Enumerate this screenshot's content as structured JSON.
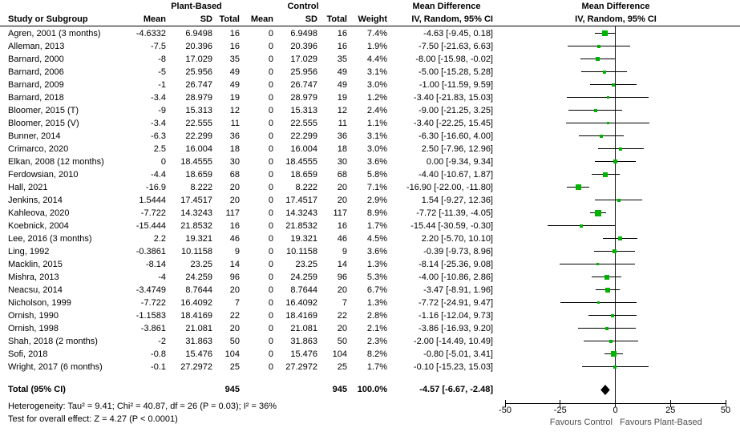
{
  "header": {
    "group_plant_based": "Plant-Based",
    "group_control": "Control",
    "study_col": "Study or Subgroup",
    "mean": "Mean",
    "sd": "SD",
    "total": "Total",
    "weight": "Weight",
    "md_title": "Mean Difference",
    "md_subtitle": "IV, Random, 95% CI"
  },
  "studies": [
    {
      "name": "Agren, 2001 (3 months)",
      "pb_mean": "-4.6332",
      "pb_sd": "6.9498",
      "pb_total": "16",
      "c_mean": "0",
      "c_sd": "6.9498",
      "c_total": "16",
      "weight": "7.4%",
      "ci_text": "-4.63 [-9.45, 0.18]"
    },
    {
      "name": "Alleman, 2013",
      "pb_mean": "-7.5",
      "pb_sd": "20.396",
      "pb_total": "16",
      "c_mean": "0",
      "c_sd": "20.396",
      "c_total": "16",
      "weight": "1.9%",
      "ci_text": "-7.50 [-21.63, 6.63]"
    },
    {
      "name": "Barnard, 2000",
      "pb_mean": "-8",
      "pb_sd": "17.029",
      "pb_total": "35",
      "c_mean": "0",
      "c_sd": "17.029",
      "c_total": "35",
      "weight": "4.4%",
      "ci_text": "-8.00 [-15.98, -0.02]"
    },
    {
      "name": "Barnard, 2006",
      "pb_mean": "-5",
      "pb_sd": "25.956",
      "pb_total": "49",
      "c_mean": "0",
      "c_sd": "25.956",
      "c_total": "49",
      "weight": "3.1%",
      "ci_text": "-5.00 [-15.28, 5.28]"
    },
    {
      "name": "Barnard, 2009",
      "pb_mean": "-1",
      "pb_sd": "26.747",
      "pb_total": "49",
      "c_mean": "0",
      "c_sd": "26.747",
      "c_total": "49",
      "weight": "3.0%",
      "ci_text": "-1.00 [-11.59, 9.59]"
    },
    {
      "name": "Barnard, 2018",
      "pb_mean": "-3.4",
      "pb_sd": "28.979",
      "pb_total": "19",
      "c_mean": "0",
      "c_sd": "28.979",
      "c_total": "19",
      "weight": "1.2%",
      "ci_text": "-3.40 [-21.83, 15.03]"
    },
    {
      "name": "Bloomer, 2015 (T)",
      "pb_mean": "-9",
      "pb_sd": "15.313",
      "pb_total": "12",
      "c_mean": "0",
      "c_sd": "15.313",
      "c_total": "12",
      "weight": "2.4%",
      "ci_text": "-9.00 [-21.25, 3.25]"
    },
    {
      "name": "Bloomer, 2015 (V)",
      "pb_mean": "-3.4",
      "pb_sd": "22.555",
      "pb_total": "11",
      "c_mean": "0",
      "c_sd": "22.555",
      "c_total": "11",
      "weight": "1.1%",
      "ci_text": "-3.40 [-22.25, 15.45]"
    },
    {
      "name": "Bunner, 2014",
      "pb_mean": "-6.3",
      "pb_sd": "22.299",
      "pb_total": "36",
      "c_mean": "0",
      "c_sd": "22.299",
      "c_total": "36",
      "weight": "3.1%",
      "ci_text": "-6.30 [-16.60, 4.00]"
    },
    {
      "name": "Crimarco, 2020",
      "pb_mean": "2.5",
      "pb_sd": "16.004",
      "pb_total": "18",
      "c_mean": "0",
      "c_sd": "16.004",
      "c_total": "18",
      "weight": "3.0%",
      "ci_text": "2.50 [-7.96, 12.96]"
    },
    {
      "name": "Elkan, 2008 (12 months)",
      "pb_mean": "0",
      "pb_sd": "18.4555",
      "pb_total": "30",
      "c_mean": "0",
      "c_sd": "18.4555",
      "c_total": "30",
      "weight": "3.6%",
      "ci_text": "0.00 [-9.34, 9.34]"
    },
    {
      "name": "Ferdowsian, 2010",
      "pb_mean": "-4.4",
      "pb_sd": "18.659",
      "pb_total": "68",
      "c_mean": "0",
      "c_sd": "18.659",
      "c_total": "68",
      "weight": "5.8%",
      "ci_text": "-4.40 [-10.67, 1.87]"
    },
    {
      "name": "Hall, 2021",
      "pb_mean": "-16.9",
      "pb_sd": "8.222",
      "pb_total": "20",
      "c_mean": "0",
      "c_sd": "8.222",
      "c_total": "20",
      "weight": "7.1%",
      "ci_text": "-16.90 [-22.00, -11.80]"
    },
    {
      "name": "Jenkins, 2014",
      "pb_mean": "1.5444",
      "pb_sd": "17.4517",
      "pb_total": "20",
      "c_mean": "0",
      "c_sd": "17.4517",
      "c_total": "20",
      "weight": "2.9%",
      "ci_text": "1.54 [-9.27, 12.36]"
    },
    {
      "name": "Kahleova, 2020",
      "pb_mean": "-7.722",
      "pb_sd": "14.3243",
      "pb_total": "117",
      "c_mean": "0",
      "c_sd": "14.3243",
      "c_total": "117",
      "weight": "8.9%",
      "ci_text": "-7.72 [-11.39, -4.05]"
    },
    {
      "name": "Koebnick, 2004",
      "pb_mean": "-15.444",
      "pb_sd": "21.8532",
      "pb_total": "16",
      "c_mean": "0",
      "c_sd": "21.8532",
      "c_total": "16",
      "weight": "1.7%",
      "ci_text": "-15.44 [-30.59, -0.30]"
    },
    {
      "name": "Lee, 2016 (3 months)",
      "pb_mean": "2.2",
      "pb_sd": "19.321",
      "pb_total": "46",
      "c_mean": "0",
      "c_sd": "19.321",
      "c_total": "46",
      "weight": "4.5%",
      "ci_text": "2.20 [-5.70, 10.10]"
    },
    {
      "name": "Ling, 1992",
      "pb_mean": "-0.3861",
      "pb_sd": "10.1158",
      "pb_total": "9",
      "c_mean": "0",
      "c_sd": "10.1158",
      "c_total": "9",
      "weight": "3.6%",
      "ci_text": "-0.39 [-9.73, 8.96]"
    },
    {
      "name": "Macklin, 2015",
      "pb_mean": "-8.14",
      "pb_sd": "23.25",
      "pb_total": "14",
      "c_mean": "0",
      "c_sd": "23.25",
      "c_total": "14",
      "weight": "1.3%",
      "ci_text": "-8.14 [-25.36, 9.08]"
    },
    {
      "name": "Mishra, 2013",
      "pb_mean": "-4",
      "pb_sd": "24.259",
      "pb_total": "96",
      "c_mean": "0",
      "c_sd": "24.259",
      "c_total": "96",
      "weight": "5.3%",
      "ci_text": "-4.00 [-10.86, 2.86]"
    },
    {
      "name": "Neacsu, 2014",
      "pb_mean": "-3.4749",
      "pb_sd": "8.7644",
      "pb_total": "20",
      "c_mean": "0",
      "c_sd": "8.7644",
      "c_total": "20",
      "weight": "6.7%",
      "ci_text": "-3.47 [-8.91, 1.96]"
    },
    {
      "name": "Nicholson, 1999",
      "pb_mean": "-7.722",
      "pb_sd": "16.4092",
      "pb_total": "7",
      "c_mean": "0",
      "c_sd": "16.4092",
      "c_total": "7",
      "weight": "1.3%",
      "ci_text": "-7.72 [-24.91, 9.47]"
    },
    {
      "name": "Ornish, 1990",
      "pb_mean": "-1.1583",
      "pb_sd": "18.4169",
      "pb_total": "22",
      "c_mean": "0",
      "c_sd": "18.4169",
      "c_total": "22",
      "weight": "2.8%",
      "ci_text": "-1.16 [-12.04, 9.73]"
    },
    {
      "name": "Ornish, 1998",
      "pb_mean": "-3.861",
      "pb_sd": "21.081",
      "pb_total": "20",
      "c_mean": "0",
      "c_sd": "21.081",
      "c_total": "20",
      "weight": "2.1%",
      "ci_text": "-3.86 [-16.93, 9.20]"
    },
    {
      "name": "Shah, 2018 (2 months)",
      "pb_mean": "-2",
      "pb_sd": "31.863",
      "pb_total": "50",
      "c_mean": "0",
      "c_sd": "31.863",
      "c_total": "50",
      "weight": "2.3%",
      "ci_text": "-2.00 [-14.49, 10.49]"
    },
    {
      "name": "Sofi, 2018",
      "pb_mean": "-0.8",
      "pb_sd": "15.476",
      "pb_total": "104",
      "c_mean": "0",
      "c_sd": "15.476",
      "c_total": "104",
      "weight": "8.2%",
      "ci_text": "-0.80 [-5.01, 3.41]"
    },
    {
      "name": "Wright, 2017 (6 months)",
      "pb_mean": "-0.1",
      "pb_sd": "27.2972",
      "pb_total": "25",
      "c_mean": "0",
      "c_sd": "27.2972",
      "c_total": "25",
      "weight": "1.7%",
      "ci_text": "-0.10 [-15.23, 15.03]"
    }
  ],
  "total_row": {
    "label": "Total (95% CI)",
    "pb_total": "945",
    "c_total": "945",
    "weight": "100.0%",
    "ci_text": "-4.57 [-6.67, -2.48]"
  },
  "footnotes": {
    "heterogeneity": "Heterogeneity: Tau² = 9.41; Chi² = 40.87, df = 26 (P = 0.03); I² = 36%",
    "overall_effect": "Test for overall effect: Z = 4.27 (P < 0.0001)"
  },
  "axis": {
    "ticks": [
      "-50",
      "-25",
      "0",
      "25",
      "50"
    ],
    "favours_left": "Favours Control",
    "favours_right": "Favours Plant-Based"
  },
  "colors": {
    "marker_green": "#00b300",
    "diamond_black": "#000000",
    "line_black": "#000000",
    "favours_text": "#4d4d4d"
  },
  "chart_data": {
    "type": "scatter",
    "subtype": "forest_plot",
    "title": "Mean Difference",
    "subtitle": "IV, Random, 95% CI",
    "xlim": [
      -50,
      50
    ],
    "xticks": [
      -50,
      -25,
      0,
      25,
      50
    ],
    "zero_line": 0,
    "xlabel_left": "Favours Control",
    "xlabel_right": "Favours Plant-Based",
    "legend_position": "none",
    "grid": false,
    "points": [
      {
        "study": "Agren, 2001 (3 months)",
        "md": -4.63,
        "ci": [
          -9.45,
          0.18
        ],
        "weight_pct": 7.4
      },
      {
        "study": "Alleman, 2013",
        "md": -7.5,
        "ci": [
          -21.63,
          6.63
        ],
        "weight_pct": 1.9
      },
      {
        "study": "Barnard, 2000",
        "md": -8.0,
        "ci": [
          -15.98,
          -0.02
        ],
        "weight_pct": 4.4
      },
      {
        "study": "Barnard, 2006",
        "md": -5.0,
        "ci": [
          -15.28,
          5.28
        ],
        "weight_pct": 3.1
      },
      {
        "study": "Barnard, 2009",
        "md": -1.0,
        "ci": [
          -11.59,
          9.59
        ],
        "weight_pct": 3.0
      },
      {
        "study": "Barnard, 2018",
        "md": -3.4,
        "ci": [
          -21.83,
          15.03
        ],
        "weight_pct": 1.2
      },
      {
        "study": "Bloomer, 2015 (T)",
        "md": -9.0,
        "ci": [
          -21.25,
          3.25
        ],
        "weight_pct": 2.4
      },
      {
        "study": "Bloomer, 2015 (V)",
        "md": -3.4,
        "ci": [
          -22.25,
          15.45
        ],
        "weight_pct": 1.1
      },
      {
        "study": "Bunner, 2014",
        "md": -6.3,
        "ci": [
          -16.6,
          4.0
        ],
        "weight_pct": 3.1
      },
      {
        "study": "Crimarco, 2020",
        "md": 2.5,
        "ci": [
          -7.96,
          12.96
        ],
        "weight_pct": 3.0
      },
      {
        "study": "Elkan, 2008 (12 months)",
        "md": 0.0,
        "ci": [
          -9.34,
          9.34
        ],
        "weight_pct": 3.6
      },
      {
        "study": "Ferdowsian, 2010",
        "md": -4.4,
        "ci": [
          -10.67,
          1.87
        ],
        "weight_pct": 5.8
      },
      {
        "study": "Hall, 2021",
        "md": -16.9,
        "ci": [
          -22.0,
          -11.8
        ],
        "weight_pct": 7.1
      },
      {
        "study": "Jenkins, 2014",
        "md": 1.54,
        "ci": [
          -9.27,
          12.36
        ],
        "weight_pct": 2.9
      },
      {
        "study": "Kahleova, 2020",
        "md": -7.72,
        "ci": [
          -11.39,
          -4.05
        ],
        "weight_pct": 8.9
      },
      {
        "study": "Koebnick, 2004",
        "md": -15.44,
        "ci": [
          -30.59,
          -0.3
        ],
        "weight_pct": 1.7
      },
      {
        "study": "Lee, 2016 (3 months)",
        "md": 2.2,
        "ci": [
          -5.7,
          10.1
        ],
        "weight_pct": 4.5
      },
      {
        "study": "Ling, 1992",
        "md": -0.39,
        "ci": [
          -9.73,
          8.96
        ],
        "weight_pct": 3.6
      },
      {
        "study": "Macklin, 2015",
        "md": -8.14,
        "ci": [
          -25.36,
          9.08
        ],
        "weight_pct": 1.3
      },
      {
        "study": "Mishra, 2013",
        "md": -4.0,
        "ci": [
          -10.86,
          2.86
        ],
        "weight_pct": 5.3
      },
      {
        "study": "Neacsu, 2014",
        "md": -3.47,
        "ci": [
          -8.91,
          1.96
        ],
        "weight_pct": 6.7
      },
      {
        "study": "Nicholson, 1999",
        "md": -7.72,
        "ci": [
          -24.91,
          9.47
        ],
        "weight_pct": 1.3
      },
      {
        "study": "Ornish, 1990",
        "md": -1.16,
        "ci": [
          -12.04,
          9.73
        ],
        "weight_pct": 2.8
      },
      {
        "study": "Ornish, 1998",
        "md": -3.86,
        "ci": [
          -16.93,
          9.2
        ],
        "weight_pct": 2.1
      },
      {
        "study": "Shah, 2018 (2 months)",
        "md": -2.0,
        "ci": [
          -14.49,
          10.49
        ],
        "weight_pct": 2.3
      },
      {
        "study": "Sofi, 2018",
        "md": -0.8,
        "ci": [
          -5.01,
          3.41
        ],
        "weight_pct": 8.2
      },
      {
        "study": "Wright, 2017 (6 months)",
        "md": -0.1,
        "ci": [
          -15.23,
          15.03
        ],
        "weight_pct": 1.7
      }
    ],
    "overall": {
      "label": "Total (95% CI)",
      "md": -4.57,
      "ci": [
        -6.67,
        -2.48
      ],
      "weight_pct": 100.0
    }
  }
}
